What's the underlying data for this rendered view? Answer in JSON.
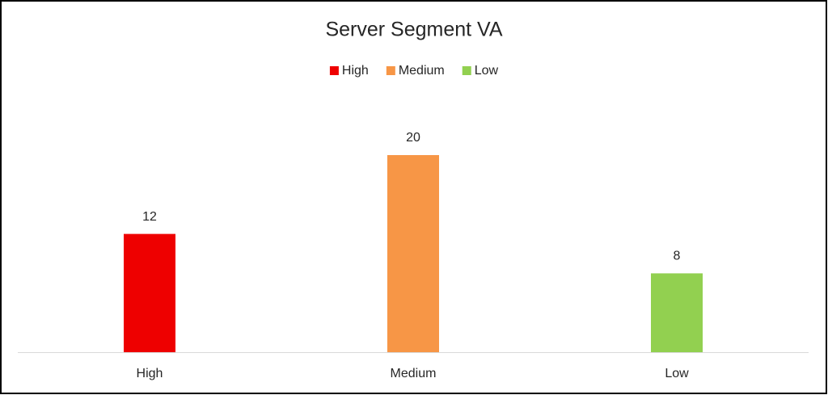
{
  "chart_data": {
    "type": "bar",
    "title": "Server Segment VA",
    "categories": [
      "High",
      "Medium",
      "Low"
    ],
    "values": [
      12,
      20,
      8
    ],
    "colors": [
      "#ee0000",
      "#f79646",
      "#92d050"
    ]
  }
}
